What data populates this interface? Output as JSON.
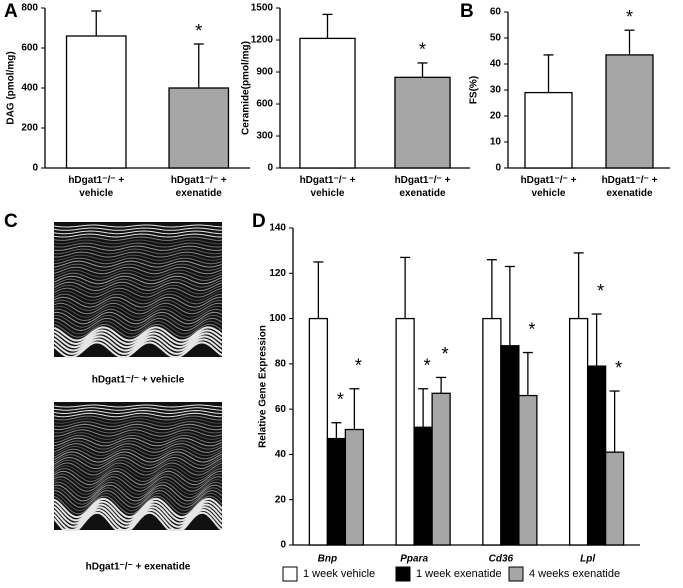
{
  "panel_labels": [
    "A",
    "B",
    "C",
    "D"
  ],
  "echo_captions": [
    "hDgat1⁻/⁻ + vehicle",
    "hDgat1⁻/⁻ + exenatide"
  ],
  "chart_data": [
    {
      "type": "bar",
      "y_label": "DAG (pmol/mg)",
      "categories": [
        "hDgat1⁻/⁻ + vehicle",
        "hDgat1⁻/⁻ + exenatide"
      ],
      "values": [
        660,
        400
      ],
      "errors": [
        125,
        220
      ],
      "significance": [
        null,
        "*"
      ],
      "colors": [
        "#ffffff",
        "#a6a6a6"
      ],
      "ylim": [
        0,
        800
      ],
      "yticks": [
        0,
        200,
        400,
        600,
        800
      ]
    },
    {
      "type": "bar",
      "y_label": "Ceramide(pmol/mg)",
      "categories": [
        "hDgat1⁻/⁻ + vehicle",
        "hDgat1⁻/⁻ + exenatide"
      ],
      "values": [
        1215,
        850
      ],
      "errors": [
        225,
        135
      ],
      "significance": [
        null,
        "*"
      ],
      "colors": [
        "#ffffff",
        "#a6a6a6"
      ],
      "ylim": [
        0,
        1500
      ],
      "yticks": [
        0,
        300,
        600,
        900,
        1200,
        1500
      ]
    },
    {
      "type": "bar",
      "y_label": "FS(%)",
      "categories": [
        "hDgat1⁻/⁻ + vehicle",
        "hDgat1⁻/⁻ + exenatide"
      ],
      "values": [
        29,
        43.5
      ],
      "errors": [
        14.5,
        9.5
      ],
      "significance": [
        null,
        "*"
      ],
      "colors": [
        "#ffffff",
        "#a6a6a6"
      ],
      "ylim": [
        0,
        60
      ],
      "yticks": [
        0,
        10,
        20,
        30,
        40,
        50,
        60
      ]
    },
    {
      "type": "grouped_bar",
      "y_label": "Relative Gene Expression",
      "categories": [
        "Bnp",
        "Ppara",
        "Cd36",
        "Lpl"
      ],
      "series": [
        {
          "name": "1 week vehicle",
          "color": "#ffffff",
          "values": [
            100,
            100,
            100,
            100
          ],
          "errors": [
            25,
            27,
            26,
            29
          ],
          "significance": [
            null,
            null,
            null,
            null
          ]
        },
        {
          "name": "1 week exenatide",
          "color": "#000000",
          "values": [
            47,
            52,
            88,
            79
          ],
          "errors": [
            7,
            17,
            35,
            23
          ],
          "significance": [
            "*",
            "*",
            null,
            "*"
          ]
        },
        {
          "name": "4 weeks exenatide",
          "color": "#a6a6a6",
          "values": [
            51,
            67,
            66,
            41
          ],
          "errors": [
            18,
            7,
            19,
            27
          ],
          "significance": [
            "*",
            "*",
            "*",
            "*"
          ]
        }
      ],
      "ylim": [
        0,
        140
      ],
      "yticks": [
        0,
        20,
        40,
        60,
        80,
        100,
        120,
        140
      ],
      "legend": "bottom"
    }
  ]
}
